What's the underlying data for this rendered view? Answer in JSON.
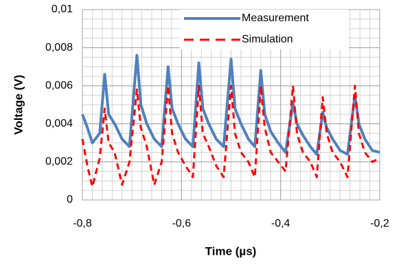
{
  "chart_data": {
    "type": "line",
    "xlabel": "Time (µs)",
    "ylabel": "Voltage (V)",
    "xlim": [
      -0.8,
      -0.2
    ],
    "xticks": [
      {
        "value": -0.8,
        "label": "-0,8"
      },
      {
        "value": -0.6,
        "label": "-0,6"
      },
      {
        "value": -0.4,
        "label": "-0,4"
      },
      {
        "value": -0.2,
        "label": "-0,2"
      }
    ],
    "ylim": [
      0,
      0.01
    ],
    "yticks": [
      0,
      {
        "value": 0.002,
        "label": "0,002"
      },
      {
        "value": 0.004,
        "label": "0,004"
      },
      {
        "value": 0.006,
        "label": "0,006"
      },
      {
        "value": 0.008,
        "label": "0,008"
      },
      {
        "value": 0.01,
        "label": "0,01"
      }
    ],
    "grid": true,
    "minor_grid": {
      "x": 0.02,
      "y": 0.0005
    },
    "legend": "upper right",
    "x": [
      -0.8,
      -0.79,
      -0.78,
      -0.765,
      -0.755,
      -0.747,
      -0.735,
      -0.72,
      -0.705,
      -0.69,
      -0.682,
      -0.67,
      -0.655,
      -0.64,
      -0.627,
      -0.619,
      -0.607,
      -0.592,
      -0.577,
      -0.565,
      -0.557,
      -0.545,
      -0.53,
      -0.515,
      -0.5,
      -0.492,
      -0.48,
      -0.465,
      -0.452,
      -0.44,
      -0.432,
      -0.42,
      -0.405,
      -0.39,
      -0.375,
      -0.367,
      -0.355,
      -0.34,
      -0.327,
      -0.315,
      -0.307,
      -0.295,
      -0.28,
      -0.265,
      -0.25,
      -0.242,
      -0.23,
      -0.215,
      -0.2
    ],
    "series": [
      {
        "name": "Measurement",
        "color": "#4f81bd",
        "style": "solid",
        "values": [
          0.0045,
          0.0038,
          0.003,
          0.0035,
          0.0066,
          0.0045,
          0.004,
          0.0032,
          0.0028,
          0.0076,
          0.005,
          0.004,
          0.0032,
          0.0028,
          0.007,
          0.0048,
          0.004,
          0.0032,
          0.0028,
          0.0072,
          0.0048,
          0.004,
          0.0032,
          0.0028,
          0.0074,
          0.0048,
          0.004,
          0.0032,
          0.0028,
          0.0068,
          0.0045,
          0.0036,
          0.003,
          0.0025,
          0.0051,
          0.004,
          0.0034,
          0.0028,
          0.0024,
          0.0046,
          0.0038,
          0.0032,
          0.0026,
          0.0024,
          0.0055,
          0.004,
          0.0032,
          0.0026,
          0.0025
        ]
      },
      {
        "name": "Simulation",
        "color": "#ff0000",
        "style": "dashed",
        "values": [
          0.0032,
          0.0018,
          0.0007,
          0.0022,
          0.0048,
          0.003,
          0.0025,
          0.0008,
          0.002,
          0.0058,
          0.0038,
          0.0028,
          0.0008,
          0.002,
          0.006,
          0.0035,
          0.0025,
          0.0018,
          0.0012,
          0.006,
          0.0035,
          0.0028,
          0.0018,
          0.0012,
          0.006,
          0.0035,
          0.0025,
          0.002,
          0.0012,
          0.006,
          0.0038,
          0.0025,
          0.002,
          0.0015,
          0.006,
          0.0035,
          0.0025,
          0.002,
          0.0012,
          0.0054,
          0.0035,
          0.0025,
          0.002,
          0.0012,
          0.006,
          0.0035,
          0.0025,
          0.002,
          0.0022
        ]
      }
    ]
  }
}
